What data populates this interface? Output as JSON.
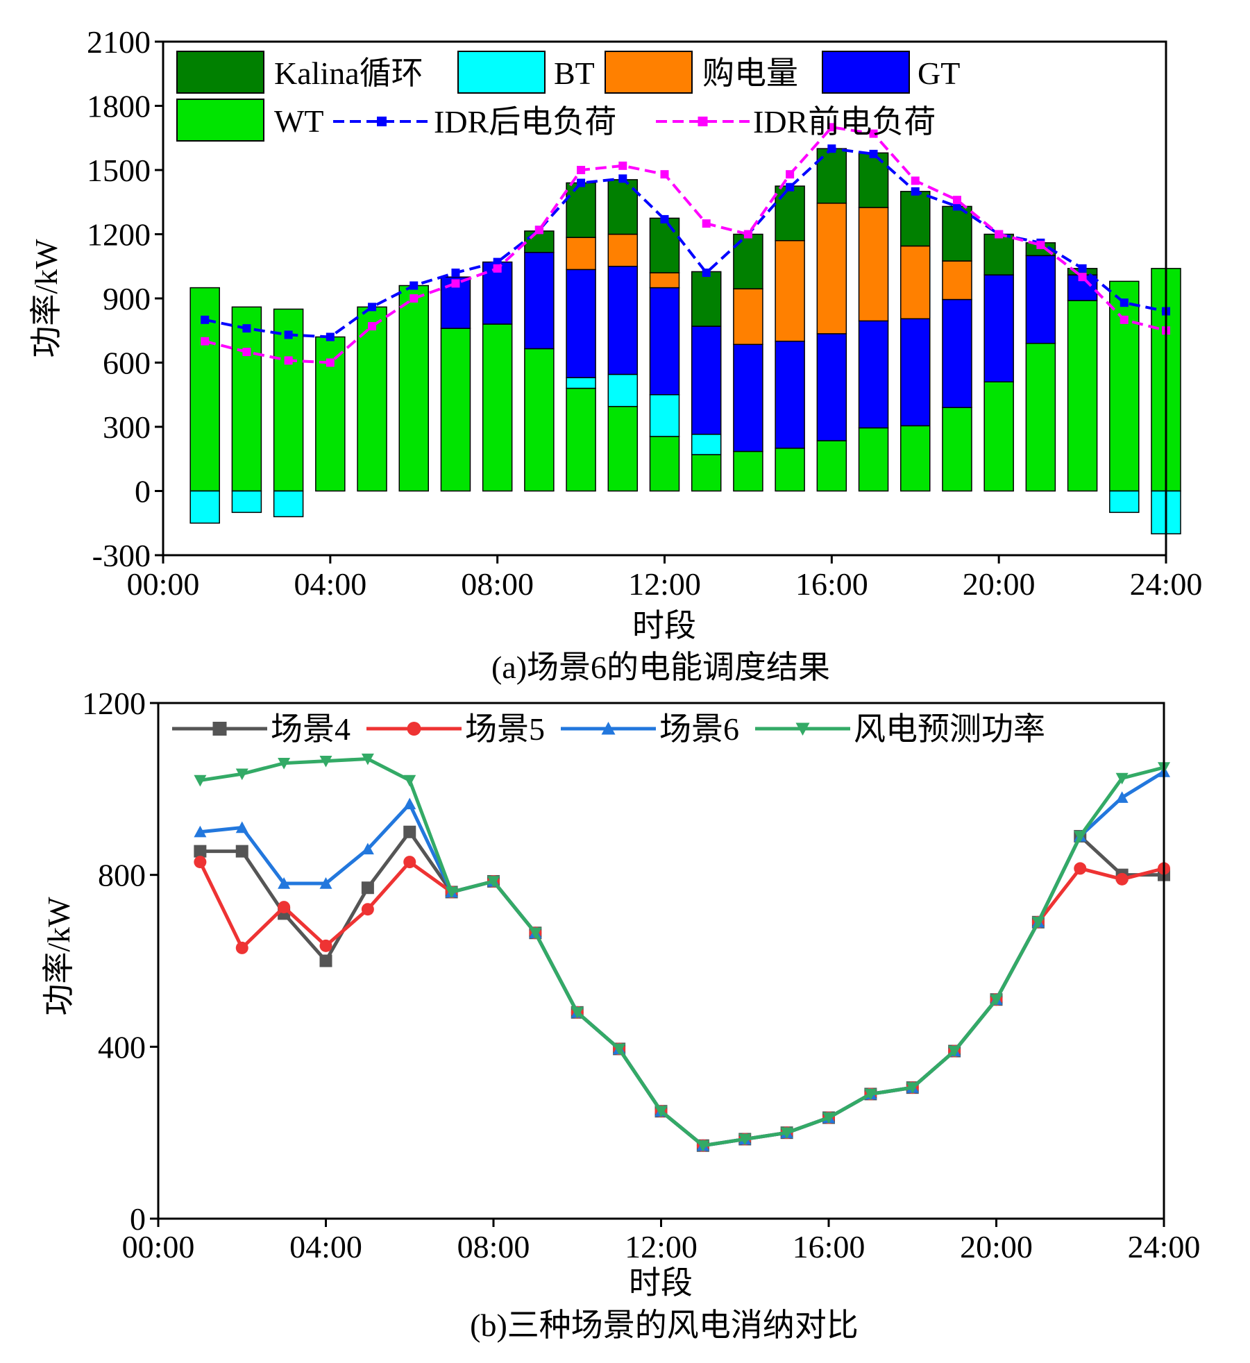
{
  "chart_data": [
    {
      "type": "bar",
      "stacked": true,
      "caption": "(a)场景6的电能调度结果",
      "xlabel": "时段",
      "ylabel": "功率/kW",
      "xticks": [
        "00:00",
        "04:00",
        "08:00",
        "12:00",
        "16:00",
        "20:00",
        "24:00"
      ],
      "yticks": [
        "-300",
        "0",
        "300",
        "600",
        "900",
        "1200",
        "1500",
        "1800",
        "2100"
      ],
      "ylim": [
        -300,
        2100
      ],
      "xlim": [
        0,
        24
      ],
      "grid": false,
      "legend_position": "top",
      "categories": [
        1,
        2,
        3,
        4,
        5,
        6,
        7,
        8,
        9,
        10,
        11,
        12,
        13,
        14,
        15,
        16,
        17,
        18,
        19,
        20,
        21,
        22,
        23,
        24
      ],
      "series": [
        {
          "name": "WT",
          "color": "#00e400",
          "values": [
            950,
            860,
            850,
            720,
            860,
            960,
            760,
            780,
            665,
            480,
            395,
            255,
            170,
            185,
            200,
            235,
            295,
            305,
            390,
            510,
            690,
            890,
            980,
            1040
          ]
        },
        {
          "name": "BT",
          "color": "#00ffff",
          "values": [
            -150,
            -100,
            -120,
            0,
            0,
            0,
            0,
            0,
            0,
            50,
            150,
            195,
            95,
            0,
            0,
            0,
            0,
            0,
            0,
            0,
            0,
            0,
            -100,
            -200
          ]
        },
        {
          "name": "GT",
          "color": "#0000ff",
          "values": [
            0,
            0,
            0,
            0,
            0,
            0,
            240,
            290,
            450,
            505,
            505,
            500,
            505,
            500,
            500,
            500,
            500,
            500,
            505,
            500,
            410,
            120,
            0,
            0
          ]
        },
        {
          "name": "购电量",
          "color": "#ff8000",
          "values": [
            0,
            0,
            0,
            0,
            0,
            0,
            0,
            0,
            0,
            150,
            150,
            70,
            0,
            260,
            470,
            610,
            530,
            340,
            180,
            0,
            0,
            0,
            0,
            0
          ]
        },
        {
          "name": "Kalina循环",
          "color": "#008000",
          "values": [
            0,
            0,
            0,
            0,
            0,
            0,
            0,
            0,
            100,
            255,
            255,
            255,
            255,
            255,
            255,
            255,
            255,
            255,
            255,
            190,
            60,
            30,
            0,
            0
          ]
        }
      ],
      "lines": [
        {
          "name": "IDR后电负荷",
          "color": "#0000ff",
          "values": [
            800,
            760,
            730,
            720,
            860,
            960,
            1020,
            1070,
            1220,
            1440,
            1460,
            1270,
            1020,
            1200,
            1420,
            1600,
            1575,
            1400,
            1330,
            1200,
            1160,
            1040,
            880,
            840
          ]
        },
        {
          "name": "IDR前电负荷",
          "color": "#ff00ff",
          "values": [
            700,
            650,
            610,
            600,
            770,
            900,
            970,
            1040,
            1220,
            1500,
            1520,
            1480,
            1250,
            1200,
            1480,
            1700,
            1670,
            1450,
            1360,
            1200,
            1150,
            1000,
            800,
            750
          ]
        }
      ],
      "legend": [
        "Kalina循环",
        "BT",
        "购电量",
        "GT",
        "WT",
        "IDR后电负荷",
        "IDR前电负荷"
      ]
    },
    {
      "type": "line",
      "caption": "(b)三种场景的风电消纳对比",
      "xlabel": "时段",
      "ylabel": "功率/kW",
      "xticks": [
        "00:00",
        "04:00",
        "08:00",
        "12:00",
        "16:00",
        "20:00",
        "24:00"
      ],
      "yticks": [
        "0",
        "400",
        "800",
        "1200"
      ],
      "ylim": [
        0,
        1200
      ],
      "xlim": [
        0,
        24
      ],
      "grid": false,
      "legend_position": "top",
      "x": [
        1,
        2,
        3,
        4,
        5,
        6,
        7,
        8,
        9,
        10,
        11,
        12,
        13,
        14,
        15,
        16,
        17,
        18,
        19,
        20,
        21,
        22,
        23,
        24
      ],
      "series": [
        {
          "name": "场景4",
          "color": "#555555",
          "marker": "square",
          "values": [
            855,
            855,
            710,
            600,
            770,
            900,
            760,
            785,
            665,
            480,
            395,
            250,
            170,
            185,
            200,
            235,
            290,
            305,
            390,
            510,
            690,
            890,
            800,
            800
          ]
        },
        {
          "name": "场景5",
          "color": "#ee3333",
          "marker": "circle",
          "values": [
            830,
            630,
            725,
            635,
            720,
            830,
            760,
            785,
            665,
            480,
            395,
            250,
            170,
            185,
            200,
            235,
            290,
            305,
            390,
            510,
            690,
            815,
            790,
            815
          ]
        },
        {
          "name": "场景6",
          "color": "#2277dd",
          "marker": "triangle-up",
          "values": [
            900,
            910,
            780,
            780,
            860,
            965,
            760,
            785,
            665,
            480,
            395,
            250,
            170,
            185,
            200,
            235,
            290,
            305,
            390,
            510,
            690,
            890,
            980,
            1040
          ]
        },
        {
          "name": "风电预测功率",
          "color": "#33aa66",
          "marker": "triangle-down",
          "values": [
            1020,
            1035,
            1060,
            1065,
            1070,
            1020,
            760,
            785,
            665,
            480,
            395,
            250,
            170,
            185,
            200,
            235,
            290,
            305,
            390,
            510,
            690,
            890,
            1025,
            1050
          ]
        }
      ],
      "legend": [
        "场景4",
        "场景5",
        "场景6",
        "风电预测功率"
      ]
    }
  ]
}
